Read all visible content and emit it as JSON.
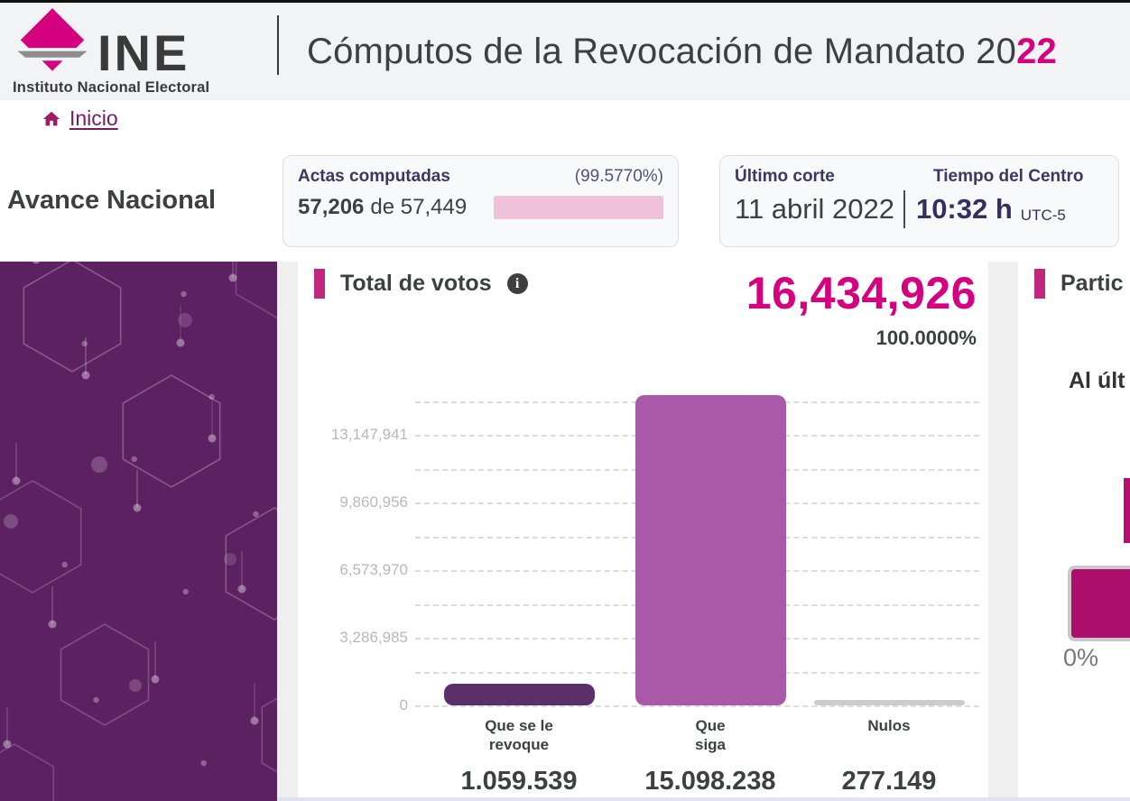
{
  "header": {
    "brand": "INE",
    "brand_subtitle": "Instituto Nacional Electoral",
    "title_main": "Cómputos de la Revocación de Mandato 20",
    "title_accent": "22"
  },
  "breadcrumb": {
    "home": "Inicio"
  },
  "section": {
    "title": "Avance Nacional"
  },
  "actas_card": {
    "label": "Actas computadas",
    "percent": "(99.5770%)",
    "computed": "57,206",
    "of_total": "de 57,449",
    "progress_percent": 99.577,
    "bar_color": "#d0006e"
  },
  "corte_card": {
    "label": "Último corte",
    "tz_label": "Tiempo del Centro",
    "date": "11 abril 2022",
    "time": "10:32 h",
    "utc": "UTC-5"
  },
  "votes": {
    "title": "Total de votos",
    "total": "16,434,926",
    "percent": "100.0000%",
    "total_color": "#d5007f",
    "accent_color": "#c0277e"
  },
  "chart_data": {
    "type": "bar",
    "title": "Total de votos",
    "categories": [
      "Que se le\nrevoque",
      "Que\nsiga",
      "Nulos"
    ],
    "values": [
      1059539,
      15098238,
      277149
    ],
    "value_labels": [
      "1.059.539",
      "15.098.238",
      "277.149"
    ],
    "bar_colors": [
      "#5b3068",
      "#a859a8",
      "#cccccc"
    ],
    "y_ticks": [
      0,
      3286985,
      6573970,
      9860956,
      13147941
    ],
    "y_tick_labels": [
      "0",
      "3,286,985",
      "6,573,970",
      "9,860,956",
      "13,147,941"
    ],
    "ylim": [
      0,
      15164423
    ],
    "grid": "dashed horizontal, minor lines unlabeled",
    "legend": "none",
    "xlabel": "",
    "ylabel": ""
  },
  "participacion": {
    "title": "Partic",
    "subtitle": "Al últ",
    "gauge_start_label": "0%",
    "gauge_color": "#ad0e6e"
  }
}
